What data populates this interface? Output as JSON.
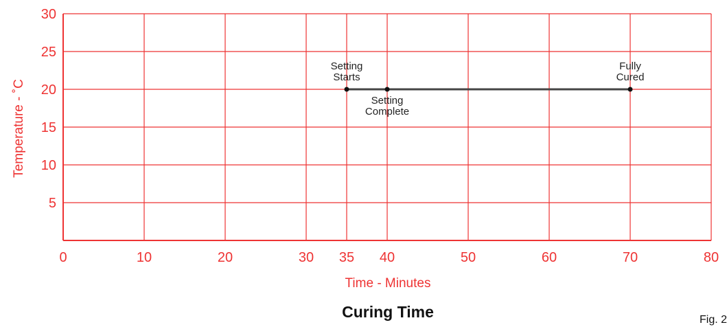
{
  "chart_data": {
    "type": "line",
    "title": "Curing Time",
    "xlabel": "Time - Minutes",
    "ylabel": "Temperature - ˚C",
    "xlim": [
      0,
      80
    ],
    "ylim": [
      0,
      30
    ],
    "x_ticks": [
      "0",
      "10",
      "20",
      "30",
      "35",
      "40",
      "50",
      "60",
      "70",
      "80"
    ],
    "x_tick_values": [
      0,
      10,
      20,
      30,
      35,
      40,
      50,
      60,
      70,
      80
    ],
    "y_ticks": [
      "5",
      "10",
      "15",
      "20",
      "25",
      "30"
    ],
    "y_tick_values": [
      5,
      10,
      15,
      20,
      25,
      30
    ],
    "grid": true,
    "grid_color": "#ee3333",
    "line_color": "#444444",
    "series": [
      {
        "x": [
          35,
          40,
          70
        ],
        "y": [
          20,
          20,
          20
        ]
      }
    ],
    "annotations": [
      {
        "lines": [
          "Setting",
          "Starts"
        ],
        "x": 35,
        "y": 20,
        "position": "above"
      },
      {
        "lines": [
          "Setting",
          "Complete"
        ],
        "x": 40,
        "y": 20,
        "position": "below"
      },
      {
        "lines": [
          "Fully",
          "Cured"
        ],
        "x": 70,
        "y": 20,
        "position": "above"
      }
    ]
  },
  "figure_label": "Fig. 2"
}
